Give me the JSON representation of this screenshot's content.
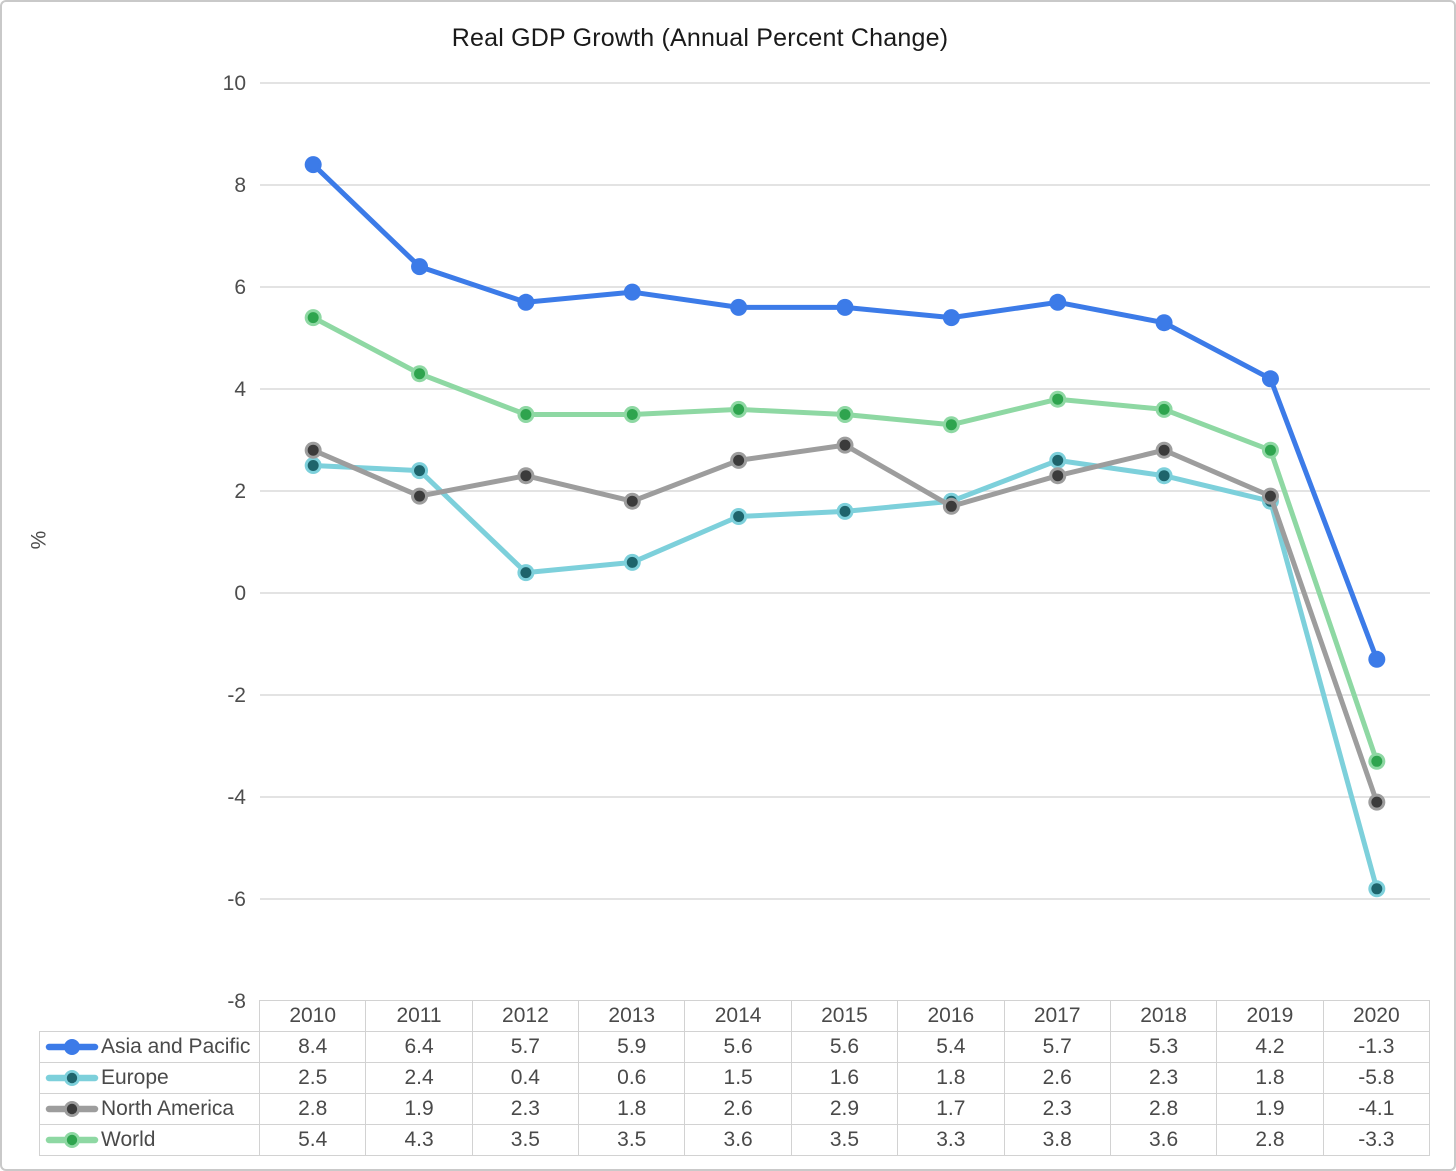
{
  "title": "Real GDP Growth (Annual Percent Change)",
  "chart_data": {
    "type": "line",
    "title": "Real GDP Growth (Annual Percent Change)",
    "xlabel": "",
    "ylabel": "%",
    "ylim": [
      -8,
      10
    ],
    "ytick_step": 2,
    "yticks": [
      10,
      8,
      6,
      4,
      2,
      0,
      -2,
      -4,
      -6,
      -8
    ],
    "grid": true,
    "legend_position": "table-left",
    "categories": [
      "2010",
      "2011",
      "2012",
      "2013",
      "2014",
      "2015",
      "2016",
      "2017",
      "2018",
      "2019",
      "2020"
    ],
    "series": [
      {
        "name": "Asia and Pacific",
        "values": [
          8.4,
          6.4,
          5.7,
          5.9,
          5.6,
          5.6,
          5.4,
          5.7,
          5.3,
          4.2,
          -1.3
        ],
        "line_color": "#3c7be8",
        "marker_color": "#3c7be8"
      },
      {
        "name": "Europe",
        "values": [
          2.5,
          2.4,
          0.4,
          0.6,
          1.5,
          1.6,
          1.8,
          2.6,
          2.3,
          1.8,
          -5.8
        ],
        "line_color": "#7dd0db",
        "marker_color": "#1e646c"
      },
      {
        "name": "North America",
        "values": [
          2.8,
          1.9,
          2.3,
          1.8,
          2.6,
          2.9,
          1.7,
          2.3,
          2.8,
          1.9,
          -4.1
        ],
        "line_color": "#9d9d9d",
        "marker_color": "#3b3b3b"
      },
      {
        "name": "World",
        "values": [
          5.4,
          4.3,
          3.5,
          3.5,
          3.6,
          3.5,
          3.3,
          3.8,
          3.6,
          2.8,
          -3.3
        ],
        "line_color": "#8ed8a3",
        "marker_color": "#2ea44e"
      }
    ]
  },
  "colors": {
    "gridline": "#dadada",
    "axis_text": "#4d4d4d",
    "table_border": "#d2d2d2",
    "table_text": "#4a4a4a",
    "title_text": "#1a1a1a",
    "page_border": "#c9c9c9",
    "background": "#ffffff"
  }
}
